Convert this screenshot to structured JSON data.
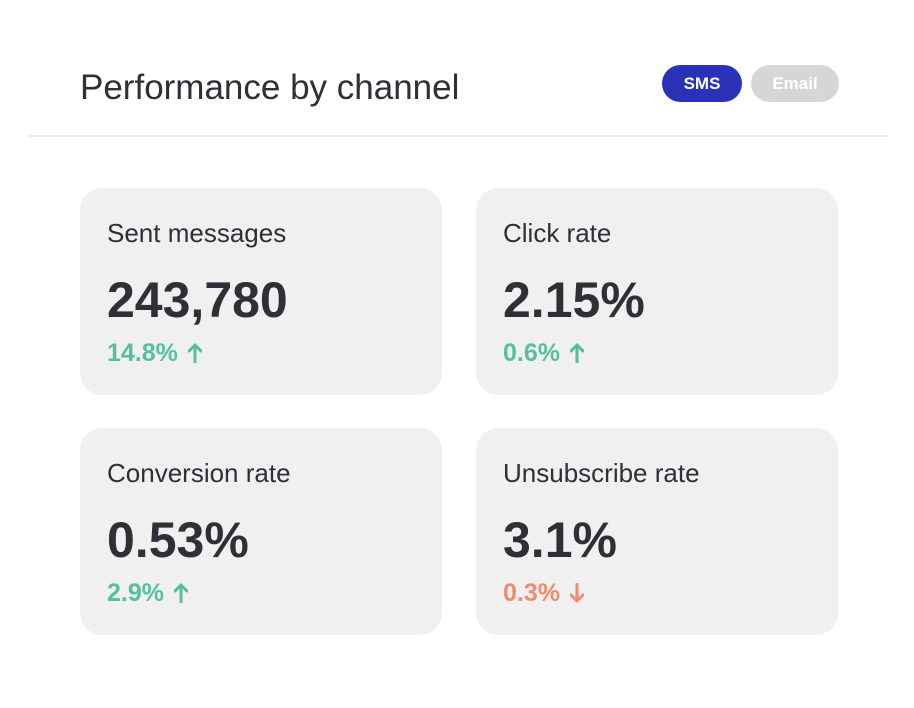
{
  "header": {
    "title": "Performance by channel",
    "tabs": [
      {
        "label": "SMS",
        "active": true
      },
      {
        "label": "Email",
        "active": false
      }
    ]
  },
  "cards": [
    {
      "label": "Sent messages",
      "value": "243,780",
      "change": "14.8%",
      "trend": "up"
    },
    {
      "label": "Click rate",
      "value": "2.15%",
      "change": "0.6%",
      "trend": "up"
    },
    {
      "label": "Conversion rate",
      "value": "0.53%",
      "change": "2.9%",
      "trend": "up"
    },
    {
      "label": "Unsubscribe rate",
      "value": "3.1%",
      "change": "0.3%",
      "trend": "down"
    }
  ]
}
